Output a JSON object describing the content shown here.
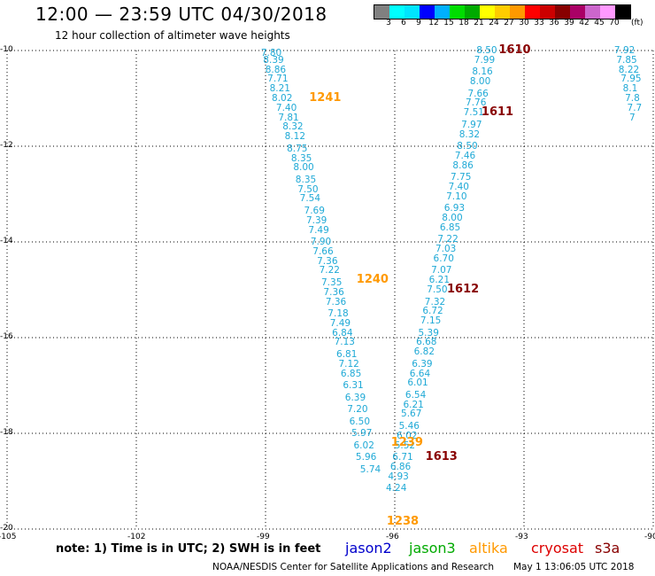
{
  "header": {
    "title": "12:00 — 23:59 UTC 04/30/2018",
    "subtitle": "12 hour collection of altimeter wave heights"
  },
  "legend": {
    "swatches": [
      "#808080",
      "#00ffff",
      "#00e5ff",
      "#0000ff",
      "#00b0ff",
      "#00dd00",
      "#00aa00",
      "#ffff00",
      "#ffcc00",
      "#ff9900",
      "#ff0000",
      "#cc0000",
      "#880000",
      "#aa0066",
      "#cc66cc",
      "#ff99ff",
      "#000000"
    ],
    "ticks": [
      "3",
      "6",
      "9",
      "12",
      "15",
      "18",
      "21",
      "24",
      "27",
      "30",
      "33",
      "36",
      "39",
      "42",
      "45",
      "70"
    ],
    "unit": "(ft)"
  },
  "map": {
    "lat_labels": [
      "-10",
      "-12",
      "-14",
      "-16",
      "-18",
      "-20"
    ],
    "lon_labels": [
      "-105",
      "-102",
      "-99",
      "-96",
      "-93",
      "-90"
    ],
    "lat_range": [
      -20,
      -10
    ],
    "lon_range": [
      -105,
      -90
    ]
  },
  "passes": [
    {
      "label": "1241",
      "color": "#ff9900",
      "lon": -97.7,
      "lat": -11.0
    },
    {
      "label": "1240",
      "color": "#ff9900",
      "lon": -96.6,
      "lat": -14.8
    },
    {
      "label": "1239",
      "color": "#ff9900",
      "lon": -95.8,
      "lat": -18.2
    },
    {
      "label": "1238",
      "color": "#ff9900",
      "lon": -95.9,
      "lat": -19.85
    },
    {
      "label": "1610",
      "color": "#880000",
      "lon": -93.3,
      "lat": -10.0
    },
    {
      "label": "1611",
      "color": "#880000",
      "lon": -93.7,
      "lat": -11.3
    },
    {
      "label": "1612",
      "color": "#880000",
      "lon": -94.5,
      "lat": -15.0
    },
    {
      "label": "1613",
      "color": "#880000",
      "lon": -95.0,
      "lat": -18.5
    }
  ],
  "tracks": [
    {
      "id": "1241-1240",
      "points": [
        [
          -98.9,
          -10.05,
          "7.80"
        ],
        [
          -98.85,
          -10.2,
          "8.39"
        ],
        [
          -98.8,
          -10.4,
          "8.86"
        ],
        [
          -98.75,
          -10.6,
          "7.71"
        ],
        [
          -98.7,
          -10.8,
          "8.21"
        ],
        [
          -98.65,
          -11.0,
          "8.02"
        ],
        [
          -98.55,
          -11.2,
          "7.40"
        ],
        [
          -98.5,
          -11.4,
          "7.81"
        ],
        [
          -98.4,
          -11.6,
          "8.32"
        ],
        [
          -98.35,
          -11.8,
          "8.12"
        ],
        [
          -98.3,
          -12.05,
          "8.75"
        ],
        [
          -98.2,
          -12.25,
          "8.35"
        ],
        [
          -98.15,
          -12.45,
          "8.00"
        ],
        [
          -98.1,
          -12.7,
          "8.35"
        ],
        [
          -98.05,
          -12.9,
          "7.50"
        ],
        [
          -98.0,
          -13.1,
          "7.54"
        ],
        [
          -97.9,
          -13.35,
          "7.69"
        ],
        [
          -97.85,
          -13.55,
          "7.39"
        ],
        [
          -97.8,
          -13.75,
          "7.49"
        ],
        [
          -97.75,
          -14.0,
          "7.90"
        ],
        [
          -97.7,
          -14.2,
          "7.66"
        ],
        [
          -97.6,
          -14.4,
          "7.36"
        ],
        [
          -97.55,
          -14.6,
          "7.22"
        ],
        [
          -97.5,
          -14.85,
          "7.35"
        ],
        [
          -97.45,
          -15.05,
          "7.36"
        ],
        [
          -97.4,
          -15.25,
          "7.36"
        ],
        [
          -97.35,
          -15.5,
          "7.18"
        ],
        [
          -97.3,
          -15.7,
          "7.49"
        ],
        [
          -97.25,
          -15.9,
          "6.84"
        ],
        [
          -97.2,
          -16.1,
          "7.13"
        ],
        [
          -97.15,
          -16.35,
          "6.81"
        ],
        [
          -97.1,
          -16.55,
          "7.12"
        ],
        [
          -97.05,
          -16.75,
          "6.85"
        ],
        [
          -97.0,
          -17.0,
          "6.31"
        ],
        [
          -96.95,
          -17.25,
          "6.39"
        ],
        [
          -96.9,
          -17.5,
          "7.20"
        ],
        [
          -96.85,
          -17.75,
          "6.50"
        ],
        [
          -96.8,
          -18.0,
          "5.97"
        ],
        [
          -96.75,
          -18.25,
          "6.02"
        ],
        [
          -96.7,
          -18.5,
          "5.96"
        ],
        [
          -96.6,
          -18.75,
          "5.74"
        ]
      ]
    },
    {
      "id": "1610-1613",
      "points": [
        [
          -93.9,
          -10.0,
          "8.50"
        ],
        [
          -93.95,
          -10.2,
          "7.99"
        ],
        [
          -94.0,
          -10.45,
          "8.16"
        ],
        [
          -94.05,
          -10.65,
          "8.00"
        ],
        [
          -94.1,
          -10.9,
          "7.66"
        ],
        [
          -94.15,
          -11.1,
          "7.76"
        ],
        [
          -94.2,
          -11.3,
          "7.51"
        ],
        [
          -94.25,
          -11.55,
          "7.97"
        ],
        [
          -94.3,
          -11.75,
          "8.32"
        ],
        [
          -94.35,
          -12.0,
          "8.50"
        ],
        [
          -94.4,
          -12.2,
          "7.46"
        ],
        [
          -94.45,
          -12.4,
          "8.86"
        ],
        [
          -94.5,
          -12.65,
          "7.75"
        ],
        [
          -94.55,
          -12.85,
          "7.40"
        ],
        [
          -94.6,
          -13.05,
          "7.10"
        ],
        [
          -94.65,
          -13.3,
          "6.93"
        ],
        [
          -94.7,
          -13.5,
          "8.00"
        ],
        [
          -94.75,
          -13.7,
          "6.85"
        ],
        [
          -94.8,
          -13.95,
          "7.22"
        ],
        [
          -94.85,
          -14.15,
          "7.03"
        ],
        [
          -94.9,
          -14.35,
          "6.70"
        ],
        [
          -94.95,
          -14.6,
          "7.07"
        ],
        [
          -95.0,
          -14.8,
          "6.21"
        ],
        [
          -95.05,
          -15.0,
          "7.50"
        ],
        [
          -95.1,
          -15.25,
          "7.32"
        ],
        [
          -95.15,
          -15.45,
          "6.72"
        ],
        [
          -95.2,
          -15.65,
          "7.15"
        ],
        [
          -95.25,
          -15.9,
          "5.39"
        ],
        [
          -95.3,
          -16.1,
          "6.68"
        ],
        [
          -95.35,
          -16.3,
          "6.82"
        ],
        [
          -95.4,
          -16.55,
          "6.39"
        ],
        [
          -95.45,
          -16.75,
          "6.64"
        ],
        [
          -95.5,
          -16.95,
          "6.01"
        ],
        [
          -95.55,
          -17.2,
          "6.54"
        ],
        [
          -95.6,
          -17.4,
          "6.21"
        ],
        [
          -95.65,
          -17.6,
          "5.67"
        ],
        [
          -95.7,
          -17.85,
          "5.46"
        ],
        [
          -95.75,
          -18.05,
          "6.02"
        ],
        [
          -95.8,
          -18.25,
          "5.52"
        ],
        [
          -95.85,
          -18.5,
          "6.71"
        ],
        [
          -95.9,
          -18.7,
          "6.86"
        ],
        [
          -95.95,
          -18.9,
          "4.93"
        ],
        [
          -96.0,
          -19.15,
          "4.24"
        ]
      ]
    },
    {
      "id": "east-edge",
      "points": [
        [
          -90.7,
          -10.0,
          "7.92"
        ],
        [
          -90.65,
          -10.2,
          "7.85"
        ],
        [
          -90.6,
          -10.4,
          "8.22"
        ],
        [
          -90.55,
          -10.6,
          "7.95"
        ],
        [
          -90.5,
          -10.8,
          "8.1"
        ],
        [
          -90.45,
          -11.0,
          "7.8"
        ],
        [
          -90.4,
          -11.2,
          "7.7"
        ],
        [
          -90.35,
          -11.4,
          "7"
        ]
      ]
    }
  ],
  "note": "note: 1) Time is in UTC; 2) SWH is in feet",
  "satellites": [
    {
      "name": "jason2",
      "color": "#0000cc"
    },
    {
      "name": "jason3",
      "color": "#00aa00"
    },
    {
      "name": "altika",
      "color": "#ff9900"
    },
    {
      "name": "cryosat",
      "color": "#dd0000"
    },
    {
      "name": "s3a",
      "color": "#880000"
    }
  ],
  "footer": {
    "credit": "NOAA/NESDIS Center for Satellite Applications and Research",
    "timestamp": "May  1 13:06:05 UTC 2018"
  }
}
